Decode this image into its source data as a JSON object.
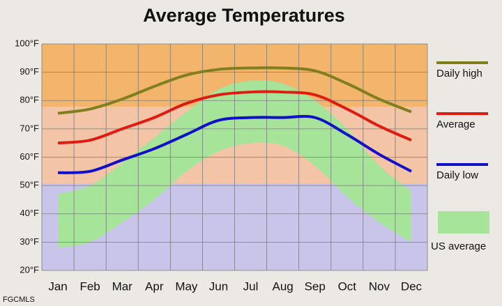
{
  "chart_data": {
    "type": "line",
    "title": "Average Temperatures",
    "categories": [
      "Jan",
      "Feb",
      "Mar",
      "Apr",
      "May",
      "Jun",
      "Jul",
      "Aug",
      "Sep",
      "Oct",
      "Nov",
      "Dec"
    ],
    "series": [
      {
        "name": "Daily high",
        "color": "#7f7f1e",
        "values": [
          75.5,
          77,
          80.5,
          85,
          89,
          91,
          91.5,
          91.5,
          90.5,
          86,
          80.5,
          76
        ]
      },
      {
        "name": "Average",
        "color": "#e01b12",
        "values": [
          65,
          66,
          70,
          74,
          79,
          82,
          83,
          83,
          82,
          77,
          71,
          66
        ]
      },
      {
        "name": "Daily low",
        "color": "#1010c8",
        "values": [
          54.5,
          55,
          59,
          63,
          68,
          73,
          74,
          74,
          74,
          68,
          61,
          55
        ]
      }
    ],
    "band": {
      "name": "US average",
      "color": "#a6e49a",
      "high": [
        47,
        50,
        58,
        67,
        76,
        84,
        87,
        86,
        80,
        70,
        57,
        48
      ],
      "low": [
        28,
        30,
        37,
        45,
        55,
        62,
        65,
        64,
        57,
        46,
        37,
        30
      ]
    },
    "ylim": [
      20,
      100
    ],
    "yticks": [
      {
        "value": 20,
        "label": "20°F"
      },
      {
        "value": 30,
        "label": "30°F"
      },
      {
        "value": 40,
        "label": "40°F"
      },
      {
        "value": 50,
        "label": "50°F"
      },
      {
        "value": 60,
        "label": "60°F"
      },
      {
        "value": 70,
        "label": "70°F"
      },
      {
        "value": 80,
        "label": "80°F"
      },
      {
        "value": 90,
        "label": "90°F"
      },
      {
        "value": 100,
        "label": "100°F"
      }
    ],
    "grid": true,
    "legend": "right",
    "credit": "FGCMLS"
  }
}
